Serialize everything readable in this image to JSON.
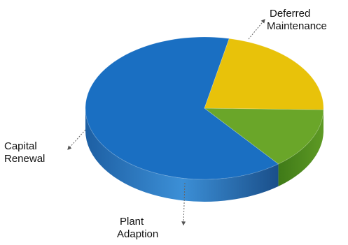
{
  "chart_data": {
    "type": "pie",
    "style": "3d-exploded-none",
    "categories": [
      "Deferred Maintenance",
      "Capital Renewal",
      "Plant Adaption"
    ],
    "values": [
      64,
      14,
      22
    ],
    "units": "percent (estimated)",
    "legend": "none",
    "labels": {
      "deferred": [
        "Deferred",
        "Maintenance"
      ],
      "capital": [
        "Capital",
        "Renewal"
      ],
      "plant": [
        "Plant",
        "Adaption"
      ]
    },
    "colors": {
      "Deferred Maintenance": "#1a6fc2",
      "Capital Renewal": "#6aa629",
      "Plant Adaption": "#e8c20a"
    }
  }
}
